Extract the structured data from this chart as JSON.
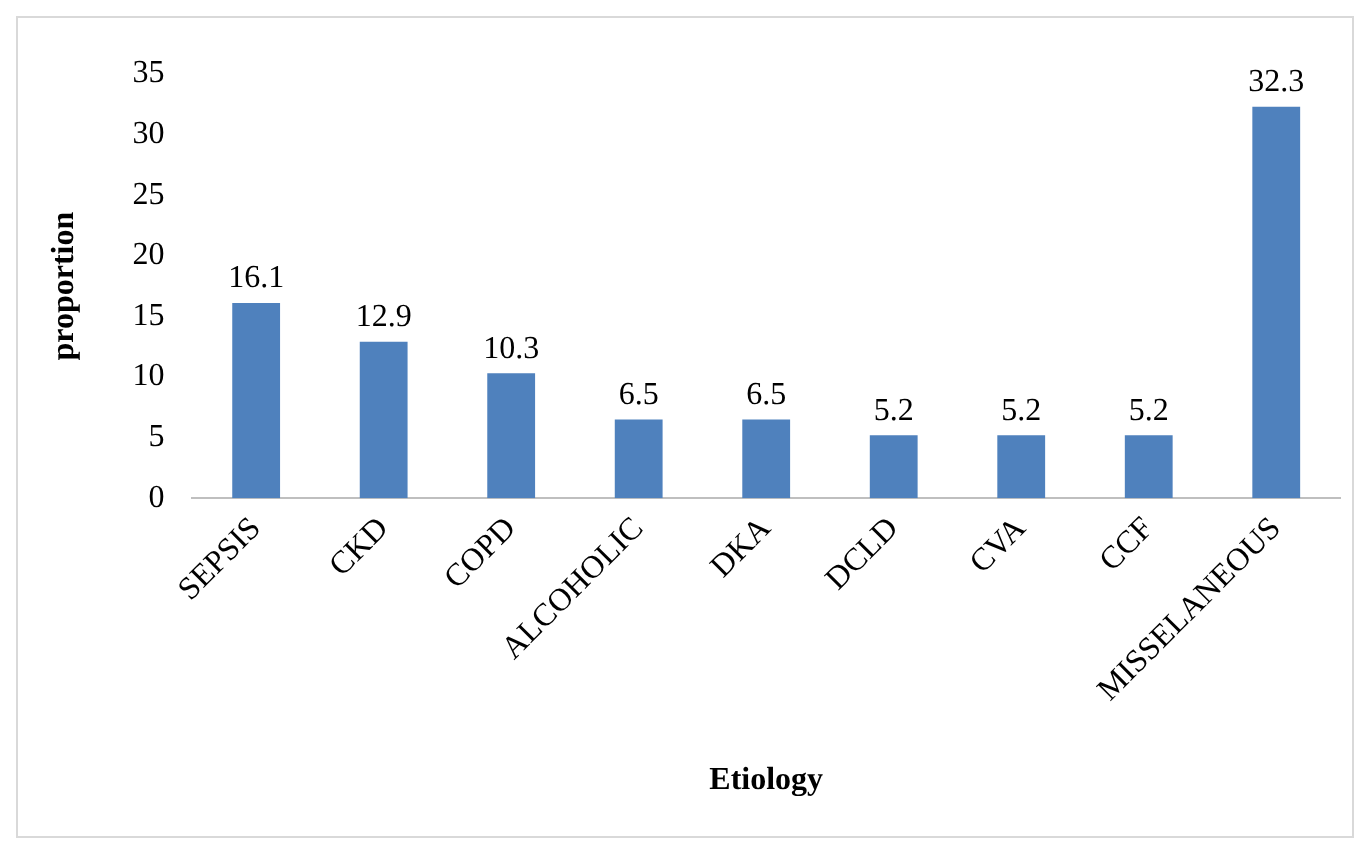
{
  "chart_data": {
    "type": "bar",
    "xlabel": "Etiology",
    "ylabel": "proportion",
    "categories": [
      "SEPSIS",
      "CKD",
      "COPD",
      "ALCOHOLIC",
      "DKA",
      "DCLD",
      "CVA",
      "CCF",
      "MISSELANEOUS"
    ],
    "values": [
      16.1,
      12.9,
      10.3,
      6.5,
      6.5,
      5.2,
      5.2,
      5.2,
      32.3
    ],
    "color": "#4f81bd",
    "ylim": [
      0,
      35
    ],
    "yticks": [
      0,
      5,
      10,
      15,
      20,
      25,
      30,
      35
    ],
    "grid": false,
    "legend": false,
    "data_labels": true
  }
}
